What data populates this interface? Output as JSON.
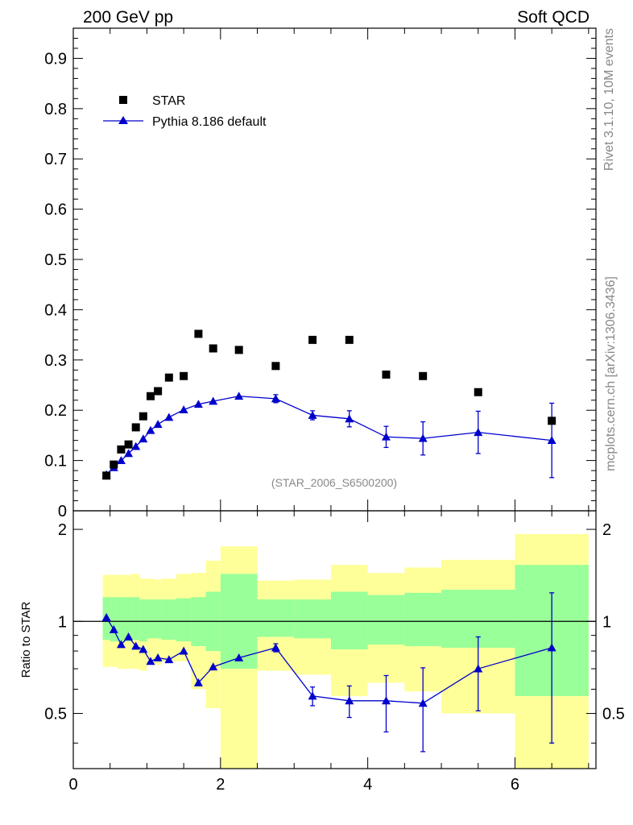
{
  "header": {
    "left_title": "200 GeV pp",
    "right_title": "Soft QCD",
    "side_rivet": "Rivet 3.1.10,  10M events",
    "side_mcplots": "mcplots.cern.ch [arXiv:1306.3436]",
    "watermark": "(STAR_2006_S6500200)"
  },
  "legend": {
    "data_label": "STAR",
    "mc_label": "Pythia 8.186 default"
  },
  "colors": {
    "data": "#000000",
    "mc": "#0000cc",
    "band_inner": "#99ff99",
    "band_outer": "#ffff99"
  },
  "chart_data": [
    {
      "type": "scatter",
      "panel": "main",
      "title": "200 GeV pp",
      "xlabel": "",
      "ylabel": "",
      "xlim": [
        0,
        7.1
      ],
      "ylim": [
        0,
        0.96
      ],
      "yticks": [
        0.1,
        0.2,
        0.3,
        0.4,
        0.5,
        0.6,
        0.7,
        0.8,
        0.9
      ],
      "ytick_labels": [
        "0.1",
        "0.2",
        "0.3",
        "0.4",
        "0.5",
        "0.6",
        "0.7",
        "0.8",
        "0.9"
      ],
      "bottom_tick_label": "0",
      "series": [
        {
          "name": "STAR",
          "marker": "square",
          "x": [
            0.45,
            0.55,
            0.65,
            0.75,
            0.85,
            0.95,
            1.05,
            1.15,
            1.3,
            1.5,
            1.7,
            1.9,
            2.25,
            2.75,
            3.25,
            3.75,
            4.25,
            4.75,
            5.5,
            6.5
          ],
          "y": [
            0.07,
            0.092,
            0.122,
            0.132,
            0.166,
            0.188,
            0.228,
            0.238,
            0.265,
            0.268,
            0.352,
            0.323,
            0.32,
            0.288,
            0.34,
            0.34,
            0.271,
            0.268,
            0.236,
            0.179
          ]
        },
        {
          "name": "Pythia 8.186 default",
          "marker": "triangle",
          "x": [
            0.45,
            0.55,
            0.65,
            0.75,
            0.85,
            0.95,
            1.05,
            1.15,
            1.3,
            1.5,
            1.7,
            1.9,
            2.25,
            2.75,
            3.25,
            3.75,
            4.25,
            4.75,
            5.5,
            6.5
          ],
          "y": [
            0.072,
            0.086,
            0.1,
            0.114,
            0.128,
            0.143,
            0.16,
            0.172,
            0.186,
            0.201,
            0.212,
            0.218,
            0.228,
            0.223,
            0.19,
            0.183,
            0.147,
            0.144,
            0.156,
            0.14
          ],
          "yerr": [
            0,
            0,
            0,
            0,
            0,
            0,
            0,
            0,
            0,
            0,
            0,
            0,
            0,
            0.008,
            0.009,
            0.016,
            0.021,
            0.033,
            0.042,
            0.074
          ]
        }
      ]
    },
    {
      "type": "line",
      "panel": "ratio",
      "ylabel": "Ratio to STAR",
      "xlim": [
        0,
        7.1
      ],
      "ylim": [
        0.33,
        2.3
      ],
      "reference_line": 1,
      "ytick_labels": [
        "0.5",
        "1",
        "2"
      ],
      "yticks": [
        0.5,
        1,
        2
      ],
      "xticks": [
        0,
        2,
        4,
        6
      ],
      "xtick_labels": [
        "0",
        "2",
        "4",
        "6"
      ],
      "bins": [
        {
          "lo": 0.4,
          "hi": 0.5,
          "inner": [
            0.87,
            1.2
          ],
          "outer": [
            0.71,
            1.42
          ]
        },
        {
          "lo": 0.5,
          "hi": 0.6,
          "inner": [
            0.86,
            1.2
          ],
          "outer": [
            0.71,
            1.42
          ]
        },
        {
          "lo": 0.6,
          "hi": 0.7,
          "inner": [
            0.86,
            1.2
          ],
          "outer": [
            0.7,
            1.42
          ]
        },
        {
          "lo": 0.7,
          "hi": 0.8,
          "inner": [
            0.86,
            1.2
          ],
          "outer": [
            0.7,
            1.42
          ]
        },
        {
          "lo": 0.8,
          "hi": 0.9,
          "inner": [
            0.87,
            1.2
          ],
          "outer": [
            0.7,
            1.43
          ]
        },
        {
          "lo": 0.9,
          "hi": 1.0,
          "inner": [
            0.86,
            1.18
          ],
          "outer": [
            0.69,
            1.38
          ]
        },
        {
          "lo": 1.0,
          "hi": 1.1,
          "inner": [
            0.88,
            1.18
          ],
          "outer": [
            0.72,
            1.38
          ]
        },
        {
          "lo": 1.1,
          "hi": 1.2,
          "inner": [
            0.88,
            1.18
          ],
          "outer": [
            0.72,
            1.37
          ]
        },
        {
          "lo": 1.2,
          "hi": 1.4,
          "inner": [
            0.87,
            1.18
          ],
          "outer": [
            0.74,
            1.38
          ]
        },
        {
          "lo": 1.4,
          "hi": 1.6,
          "inner": [
            0.86,
            1.19
          ],
          "outer": [
            0.74,
            1.43
          ]
        },
        {
          "lo": 1.6,
          "hi": 1.8,
          "inner": [
            0.83,
            1.2
          ],
          "outer": [
            0.6,
            1.44
          ]
        },
        {
          "lo": 1.8,
          "hi": 2.0,
          "inner": [
            0.8,
            1.25
          ],
          "outer": [
            0.52,
            1.58
          ]
        },
        {
          "lo": 2.0,
          "hi": 2.5,
          "inner": [
            0.7,
            1.43
          ],
          "outer": [
            0.33,
            1.76
          ]
        },
        {
          "lo": 2.5,
          "hi": 3.0,
          "inner": [
            0.89,
            1.18
          ],
          "outer": [
            0.69,
            1.36
          ]
        },
        {
          "lo": 3.0,
          "hi": 3.5,
          "inner": [
            0.88,
            1.18
          ],
          "outer": [
            0.67,
            1.37
          ]
        },
        {
          "lo": 3.5,
          "hi": 4.0,
          "inner": [
            0.81,
            1.25
          ],
          "outer": [
            0.57,
            1.53
          ]
        },
        {
          "lo": 4.0,
          "hi": 4.5,
          "inner": [
            0.84,
            1.22
          ],
          "outer": [
            0.63,
            1.44
          ]
        },
        {
          "lo": 4.5,
          "hi": 5.0,
          "inner": [
            0.83,
            1.24
          ],
          "outer": [
            0.59,
            1.5
          ]
        },
        {
          "lo": 5.0,
          "hi": 6.0,
          "inner": [
            0.82,
            1.27
          ],
          "outer": [
            0.5,
            1.59
          ]
        },
        {
          "lo": 6.0,
          "hi": 7.0,
          "inner": [
            0.57,
            1.53
          ],
          "outer": [
            0.33,
            1.93
          ]
        }
      ],
      "series": [
        {
          "name": "Pythia 8.186 default / STAR",
          "x": [
            0.45,
            0.55,
            0.65,
            0.75,
            0.85,
            0.95,
            1.05,
            1.15,
            1.3,
            1.5,
            1.7,
            1.9,
            2.25,
            2.75,
            3.25,
            3.75,
            4.25,
            4.75,
            5.5,
            6.5
          ],
          "y": [
            1.03,
            0.94,
            0.84,
            0.89,
            0.83,
            0.81,
            0.74,
            0.76,
            0.75,
            0.8,
            0.63,
            0.71,
            0.76,
            0.82,
            0.57,
            0.55,
            0.55,
            0.54,
            0.7,
            0.82
          ],
          "yerr": [
            0,
            0,
            0,
            0,
            0,
            0,
            0,
            0,
            0,
            0,
            0,
            0,
            0,
            0.025,
            0.04,
            0.065,
            0.115,
            0.165,
            0.19,
            0.42
          ]
        }
      ]
    }
  ]
}
